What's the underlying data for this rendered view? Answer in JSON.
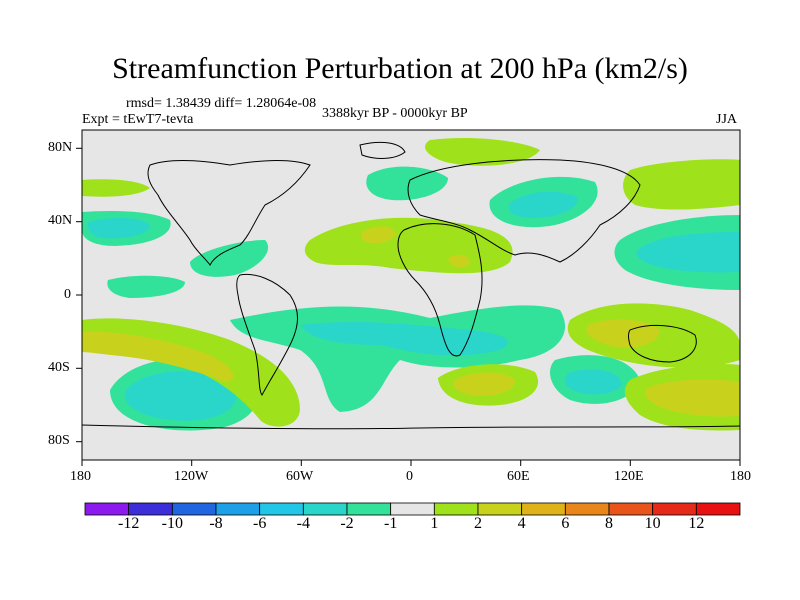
{
  "title": "Streamfunction Perturbation at 200 hPa (km2/s)",
  "stats": "rmsd= 1.38439 diff= 1.28064e-08",
  "experiment": "Expt = tEwT7-tevta",
  "period": "3388kyr BP - 0000kyr BP",
  "season": "JJA",
  "x_ticks": [
    "180",
    "120W",
    "60W",
    "0",
    "60E",
    "120E",
    "180"
  ],
  "y_ticks": [
    "80N",
    "40N",
    "0",
    "40S",
    "80S"
  ],
  "colorbar": {
    "labels": [
      "-12",
      "-10",
      "-8",
      "-6",
      "-4",
      "-2",
      "-1",
      "1",
      "2",
      "4",
      "6",
      "8",
      "10",
      "12"
    ],
    "colors": [
      "#8c1aef",
      "#3c2fd9",
      "#1f66e0",
      "#1ea0e8",
      "#22c6e6",
      "#2ad6c9",
      "#33e29a",
      "#e6e6e6",
      "#9fe21c",
      "#c8d21c",
      "#e0b21a",
      "#e8861a",
      "#e8541a",
      "#e62a1a",
      "#e81010"
    ]
  },
  "map": {
    "land_color": "#000000",
    "neutral_color": "#e6e6e6"
  }
}
